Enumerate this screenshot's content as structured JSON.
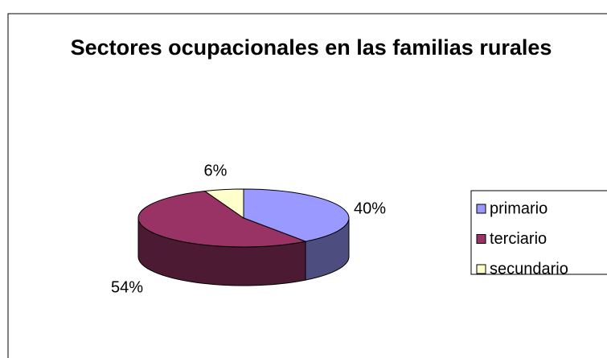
{
  "chart_data": {
    "type": "pie3d",
    "title": "Sectores ocupacionales en las familias rurales",
    "categories": [
      "primario",
      "terciario",
      "secundario"
    ],
    "values": [
      40,
      54,
      6
    ],
    "value_labels": [
      "40%",
      "54%",
      "6%"
    ],
    "colors": [
      "#9999ff",
      "#993366",
      "#ffffcc"
    ],
    "legend": "right"
  }
}
